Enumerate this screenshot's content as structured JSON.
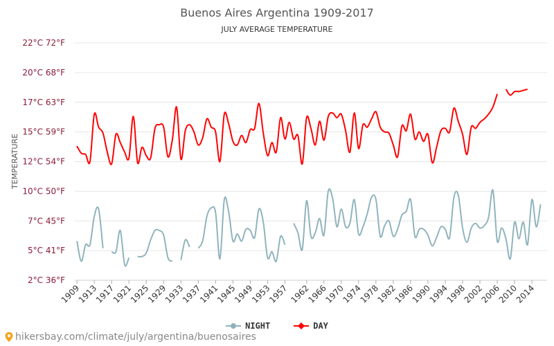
{
  "chart_data": {
    "type": "line",
    "title": "Buenos Aires Argentina 1909-2017",
    "subtitle": "JULY AVERAGE TEMPERATURE",
    "ylabel": "TEMPERATURE",
    "ylim": [
      2,
      22
    ],
    "y_ticks": [
      {
        "value": 2,
        "label": "2°C 36°F"
      },
      {
        "value": 4.5,
        "label": "5°C 41°F"
      },
      {
        "value": 7,
        "label": "7°C 45°F"
      },
      {
        "value": 9.5,
        "label": "10°C 50°F"
      },
      {
        "value": 12,
        "label": "12°C 54°F"
      },
      {
        "value": 14.5,
        "label": "15°C 59°F"
      },
      {
        "value": 17,
        "label": "17°C 63°F"
      },
      {
        "value": 19.5,
        "label": "20°C 68°F"
      },
      {
        "value": 22,
        "label": "22°C 72°F"
      }
    ],
    "xlim": [
      1908.5,
      2017.5
    ],
    "x_ticks": [
      1909,
      1913,
      1917,
      1921,
      1925,
      1929,
      1933,
      1937,
      1941,
      1945,
      1949,
      1953,
      1957,
      1962,
      1966,
      1970,
      1974,
      1978,
      1982,
      1986,
      1990,
      1994,
      1998,
      2002,
      2006,
      2010,
      2014
    ],
    "grid": true,
    "legend_position": "bottom",
    "series": [
      {
        "name": "NIGHT",
        "color": "#8fb3bd",
        "points": [
          [
            1909,
            5.3
          ],
          [
            1910,
            3.6
          ],
          [
            1911,
            5.0
          ],
          [
            1912,
            5.0
          ],
          [
            1913,
            7.4
          ],
          [
            1914,
            8.0
          ],
          [
            1915,
            4.7
          ],
          [
            1916,
            null
          ],
          [
            1917,
            4.4
          ],
          [
            1918,
            4.4
          ],
          [
            1919,
            6.2
          ],
          [
            1920,
            3.3
          ],
          [
            1921,
            3.9
          ],
          [
            1922,
            null
          ],
          [
            1923,
            4.0
          ],
          [
            1924,
            4.0
          ],
          [
            1925,
            4.3
          ],
          [
            1926,
            5.4
          ],
          [
            1927,
            6.2
          ],
          [
            1928,
            6.2
          ],
          [
            1929,
            5.8
          ],
          [
            1930,
            3.9
          ],
          [
            1931,
            3.6
          ],
          [
            1932,
            null
          ],
          [
            1933,
            3.7
          ],
          [
            1934,
            5.4
          ],
          [
            1935,
            4.8
          ],
          [
            1936,
            null
          ],
          [
            1937,
            4.7
          ],
          [
            1938,
            5.3
          ],
          [
            1939,
            7.4
          ],
          [
            1940,
            8.1
          ],
          [
            1941,
            7.7
          ],
          [
            1942,
            3.8
          ],
          [
            1943,
            8.8
          ],
          [
            1944,
            7.8
          ],
          [
            1945,
            5.3
          ],
          [
            1946,
            5.9
          ],
          [
            1947,
            5.3
          ],
          [
            1948,
            6.3
          ],
          [
            1949,
            6.2
          ],
          [
            1950,
            5.6
          ],
          [
            1951,
            8.0
          ],
          [
            1952,
            6.9
          ],
          [
            1953,
            3.9
          ],
          [
            1954,
            4.4
          ],
          [
            1955,
            3.6
          ],
          [
            1956,
            5.7
          ],
          [
            1957,
            5.0
          ],
          [
            1958,
            null
          ],
          [
            1959,
            6.8
          ],
          [
            1960,
            6.0
          ],
          [
            1961,
            4.6
          ],
          [
            1962,
            8.7
          ],
          [
            1963,
            5.7
          ],
          [
            1964,
            6.0
          ],
          [
            1965,
            7.2
          ],
          [
            1966,
            5.8
          ],
          [
            1967,
            9.5
          ],
          [
            1968,
            8.9
          ],
          [
            1969,
            6.5
          ],
          [
            1970,
            8.0
          ],
          [
            1971,
            6.5
          ],
          [
            1972,
            6.8
          ],
          [
            1973,
            8.8
          ],
          [
            1974,
            5.9
          ],
          [
            1975,
            6.5
          ],
          [
            1976,
            7.6
          ],
          [
            1977,
            9.0
          ],
          [
            1978,
            8.8
          ],
          [
            1979,
            5.7
          ],
          [
            1980,
            6.6
          ],
          [
            1981,
            7.0
          ],
          [
            1982,
            5.7
          ],
          [
            1983,
            6.3
          ],
          [
            1984,
            7.5
          ],
          [
            1985,
            7.8
          ],
          [
            1986,
            8.8
          ],
          [
            1987,
            5.7
          ],
          [
            1988,
            6.3
          ],
          [
            1989,
            6.3
          ],
          [
            1990,
            5.8
          ],
          [
            1991,
            4.9
          ],
          [
            1992,
            5.6
          ],
          [
            1993,
            6.5
          ],
          [
            1994,
            6.3
          ],
          [
            1995,
            5.6
          ],
          [
            1996,
            9.0
          ],
          [
            1997,
            9.2
          ],
          [
            1998,
            6.4
          ],
          [
            1999,
            5.2
          ],
          [
            2000,
            6.4
          ],
          [
            2001,
            6.8
          ],
          [
            2002,
            6.4
          ],
          [
            2003,
            6.6
          ],
          [
            2004,
            7.3
          ],
          [
            2005,
            9.6
          ],
          [
            2006,
            5.3
          ],
          [
            2007,
            6.4
          ],
          [
            2008,
            5.5
          ],
          [
            2009,
            3.8
          ],
          [
            2010,
            6.9
          ],
          [
            2011,
            5.5
          ],
          [
            2012,
            6.9
          ],
          [
            2013,
            5.0
          ],
          [
            2014,
            8.8
          ],
          [
            2015,
            6.5
          ],
          [
            2016,
            8.4
          ]
        ]
      },
      {
        "name": "DAY",
        "color": "#ff0000",
        "points": [
          [
            1909,
            13.3
          ],
          [
            1910,
            12.7
          ],
          [
            1911,
            12.6
          ],
          [
            1912,
            12.0
          ],
          [
            1913,
            16.0
          ],
          [
            1914,
            14.9
          ],
          [
            1915,
            14.4
          ],
          [
            1916,
            12.8
          ],
          [
            1917,
            11.8
          ],
          [
            1918,
            14.3
          ],
          [
            1919,
            13.6
          ],
          [
            1920,
            12.8
          ],
          [
            1921,
            12.3
          ],
          [
            1922,
            15.8
          ],
          [
            1923,
            11.9
          ],
          [
            1924,
            13.2
          ],
          [
            1925,
            12.5
          ],
          [
            1926,
            12.3
          ],
          [
            1927,
            14.8
          ],
          [
            1928,
            15.1
          ],
          [
            1929,
            14.9
          ],
          [
            1930,
            12.4
          ],
          [
            1931,
            13.8
          ],
          [
            1932,
            16.6
          ],
          [
            1933,
            12.2
          ],
          [
            1934,
            14.6
          ],
          [
            1935,
            15.1
          ],
          [
            1936,
            14.5
          ],
          [
            1937,
            13.4
          ],
          [
            1938,
            14.0
          ],
          [
            1939,
            15.6
          ],
          [
            1940,
            14.9
          ],
          [
            1941,
            14.5
          ],
          [
            1942,
            12.0
          ],
          [
            1943,
            16.0
          ],
          [
            1944,
            15.2
          ],
          [
            1945,
            13.7
          ],
          [
            1946,
            13.4
          ],
          [
            1947,
            14.2
          ],
          [
            1948,
            13.6
          ],
          [
            1949,
            14.7
          ],
          [
            1950,
            14.8
          ],
          [
            1951,
            16.9
          ],
          [
            1952,
            14.4
          ],
          [
            1953,
            12.5
          ],
          [
            1954,
            13.6
          ],
          [
            1955,
            12.8
          ],
          [
            1956,
            15.7
          ],
          [
            1957,
            13.9
          ],
          [
            1958,
            15.3
          ],
          [
            1959,
            13.9
          ],
          [
            1960,
            14.2
          ],
          [
            1961,
            11.8
          ],
          [
            1962,
            15.7
          ],
          [
            1963,
            14.8
          ],
          [
            1964,
            13.4
          ],
          [
            1965,
            15.4
          ],
          [
            1966,
            13.8
          ],
          [
            1967,
            15.8
          ],
          [
            1968,
            16.1
          ],
          [
            1969,
            15.7
          ],
          [
            1970,
            16.0
          ],
          [
            1971,
            14.6
          ],
          [
            1972,
            12.8
          ],
          [
            1973,
            16.1
          ],
          [
            1974,
            13.1
          ],
          [
            1975,
            15.1
          ],
          [
            1976,
            14.9
          ],
          [
            1977,
            15.6
          ],
          [
            1978,
            16.2
          ],
          [
            1979,
            14.9
          ],
          [
            1980,
            14.5
          ],
          [
            1981,
            14.4
          ],
          [
            1982,
            13.4
          ],
          [
            1983,
            12.4
          ],
          [
            1984,
            15.0
          ],
          [
            1985,
            14.6
          ],
          [
            1986,
            16.0
          ],
          [
            1987,
            13.9
          ],
          [
            1988,
            14.5
          ],
          [
            1989,
            13.7
          ],
          [
            1990,
            14.3
          ],
          [
            1991,
            11.9
          ],
          [
            1992,
            13.2
          ],
          [
            1993,
            14.6
          ],
          [
            1994,
            14.8
          ],
          [
            1995,
            14.5
          ],
          [
            1996,
            16.5
          ],
          [
            1997,
            15.4
          ],
          [
            1998,
            14.3
          ],
          [
            1999,
            12.6
          ],
          [
            2000,
            14.9
          ],
          [
            2001,
            14.8
          ],
          [
            2002,
            15.3
          ],
          [
            2003,
            15.6
          ],
          [
            2004,
            16.0
          ],
          [
            2005,
            16.6
          ],
          [
            2006,
            17.7
          ],
          [
            2007,
            null
          ],
          [
            2008,
            18.1
          ],
          [
            2009,
            17.6
          ],
          [
            2010,
            17.9
          ],
          [
            2011,
            17.9
          ],
          [
            2012,
            18.0
          ],
          [
            2013,
            18.1
          ]
        ]
      }
    ]
  },
  "source_text": "hikersbay.com/climate/july/argentina/buenosaires",
  "icon": "location-pin-icon"
}
